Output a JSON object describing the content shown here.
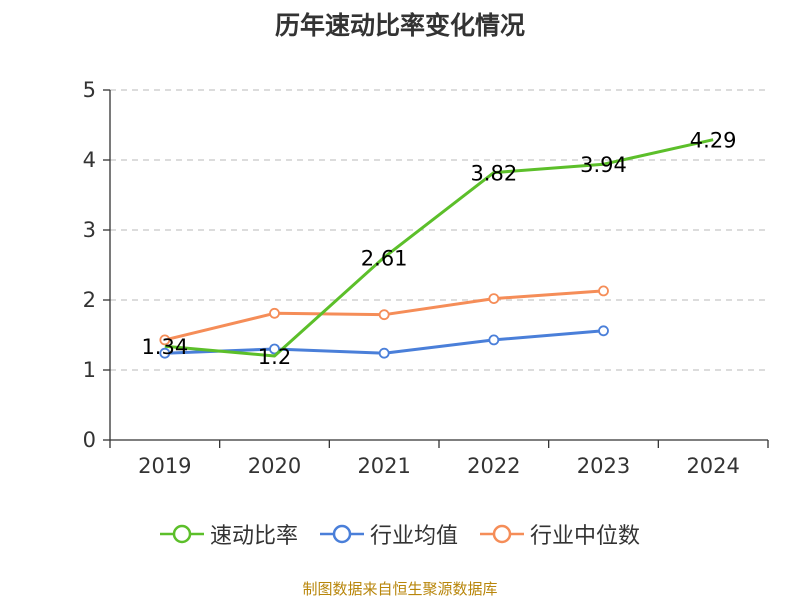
{
  "chart_data": {
    "type": "line",
    "title": "历年速动比率变化情况",
    "categories": [
      "2019",
      "2020",
      "2021",
      "2022",
      "2023",
      "2024"
    ],
    "ylim": [
      0,
      5
    ],
    "yticks": [
      0,
      1,
      2,
      3,
      4,
      5
    ],
    "grid": "dashed horizontal",
    "legend_position": "bottom",
    "series": [
      {
        "name": "速动比率",
        "color": "#5cbf2a",
        "values": [
          1.34,
          1.2,
          2.61,
          3.82,
          3.94,
          4.29
        ],
        "labels": [
          "1.34",
          "1.2",
          "2.61",
          "3.82",
          "3.94",
          "4.29"
        ]
      },
      {
        "name": "行业均值",
        "color": "#4a7fd9",
        "values": [
          1.24,
          1.3,
          1.24,
          1.43,
          1.56,
          null
        ]
      },
      {
        "name": "行业中位数",
        "color": "#f58d58",
        "values": [
          1.43,
          1.81,
          1.79,
          2.02,
          2.13,
          null
        ]
      }
    ]
  },
  "source": "制图数据来自恒生聚源数据库"
}
